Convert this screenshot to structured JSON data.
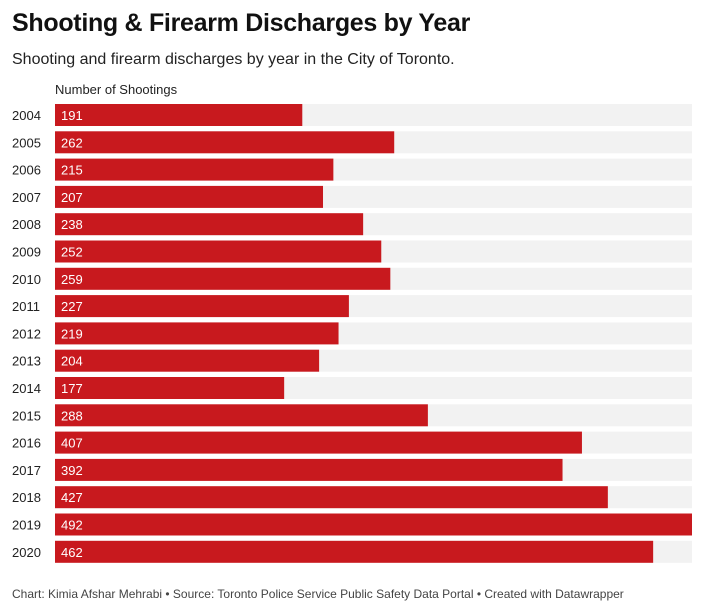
{
  "header": {
    "title": "Shooting & Firearm Discharges by Year",
    "subtitle": "Shooting and firearm discharges by year in the City of Toronto."
  },
  "footer": {
    "credit": "Chart: Kimia Afshar Mehrabi • Source: Toronto Police Service Public Safety Data Portal • Created with Datawrapper"
  },
  "colors": {
    "bar": "#c8191e",
    "track": "#f2f2f2"
  },
  "chart_data": {
    "type": "bar",
    "orientation": "horizontal",
    "title": "Shooting & Firearm Discharges by Year",
    "subtitle": "Shooting and firearm discharges by year in the City of Toronto.",
    "series_label": "Number of Shootings",
    "categories": [
      "2004",
      "2005",
      "2006",
      "2007",
      "2008",
      "2009",
      "2010",
      "2011",
      "2012",
      "2013",
      "2014",
      "2015",
      "2016",
      "2017",
      "2018",
      "2019",
      "2020"
    ],
    "values": [
      191,
      262,
      215,
      207,
      238,
      252,
      259,
      227,
      219,
      204,
      177,
      288,
      407,
      392,
      427,
      492,
      462
    ],
    "xlim": [
      0,
      492
    ],
    "grid": false,
    "legend": "none"
  }
}
